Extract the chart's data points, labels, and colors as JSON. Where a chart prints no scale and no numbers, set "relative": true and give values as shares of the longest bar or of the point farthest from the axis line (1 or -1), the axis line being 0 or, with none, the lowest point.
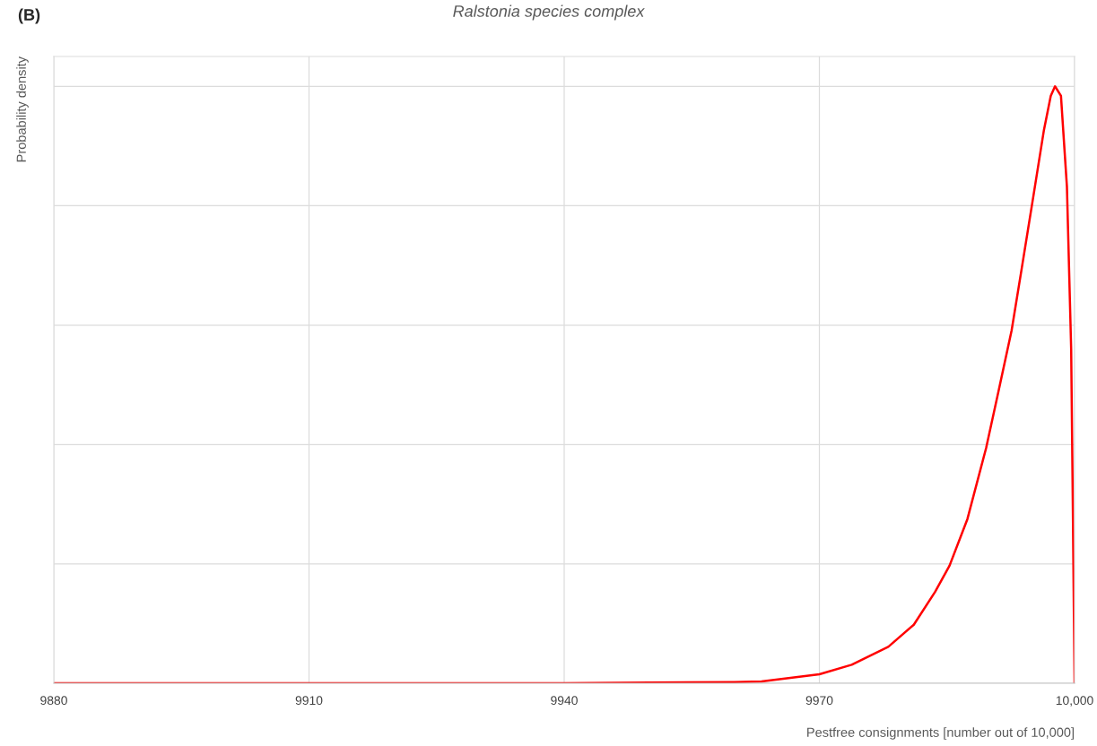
{
  "chart_data": {
    "type": "line",
    "title": "Ralstonia species complex",
    "xlabel": "Pestfree consignments [number out of 10,000]",
    "ylabel": "Probability density",
    "annotations": [
      "(B)"
    ],
    "relative": true,
    "x": [
      9880,
      9940,
      9950,
      9960,
      9963.2,
      9970,
      9973.8,
      9978.1,
      9981.1,
      9983.6,
      9985.3,
      9987.4,
      9989.6,
      9991.1,
      9992.6,
      9993.8,
      9995.1,
      9996.4,
      9997.2,
      9997.7,
      9998.4,
      9999.1,
      9999.6,
      9999.8,
      10000
    ],
    "series": [
      {
        "color": "#ff0000",
        "values": [
          0,
          0,
          0.001,
          0.002,
          0.003,
          0.015,
          0.031,
          0.061,
          0.098,
          0.153,
          0.197,
          0.275,
          0.394,
          0.492,
          0.591,
          0.696,
          0.811,
          0.927,
          0.984,
          1.0,
          0.984,
          0.832,
          0.56,
          0.289,
          0
        ]
      }
    ],
    "xlim": [
      9880,
      10000
    ],
    "xticks": [
      9880,
      9910,
      9940,
      9970,
      {
        "value": 10000,
        "label": "10,000"
      }
    ],
    "grid": true,
    "legend": false,
    "marker": "none",
    "line_style": "solid"
  }
}
